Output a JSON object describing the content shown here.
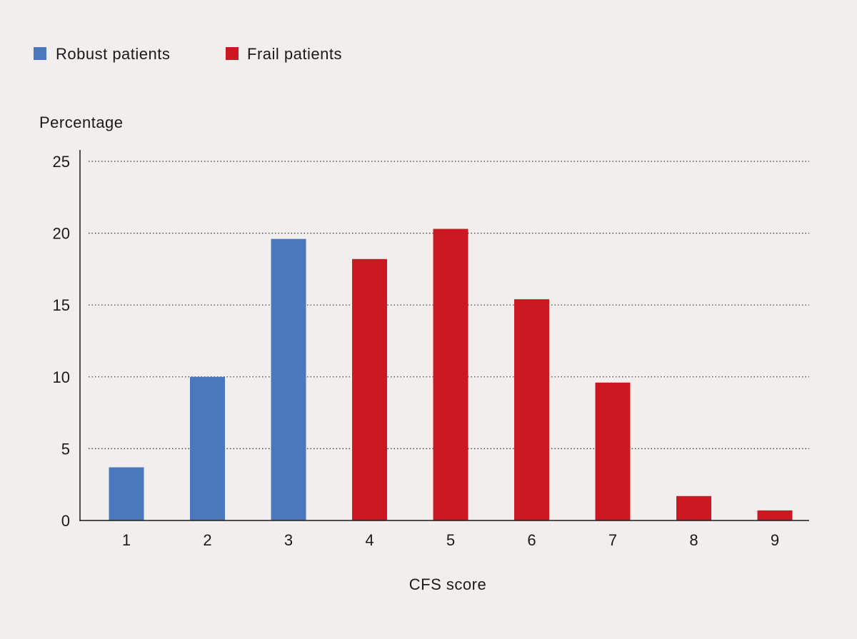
{
  "chart_data": {
    "type": "bar",
    "xlabel": "CFS score",
    "ylabel": "Percentage",
    "categories": [
      "1",
      "2",
      "3",
      "4",
      "5",
      "6",
      "7",
      "8",
      "9"
    ],
    "values": [
      3.7,
      10.0,
      19.6,
      18.2,
      20.3,
      15.4,
      9.6,
      1.7,
      0.7
    ],
    "groups": [
      "robust",
      "robust",
      "robust",
      "frail",
      "frail",
      "frail",
      "frail",
      "frail",
      "frail"
    ],
    "ylim": [
      0,
      25
    ],
    "yticks": [
      0,
      5,
      10,
      15,
      20,
      25
    ],
    "grid": "horizontal dotted",
    "legend_position": "top-left",
    "legend": [
      {
        "key": "robust",
        "label": "Robust patients",
        "color": "#4a78bd"
      },
      {
        "key": "frail",
        "label": "Frail patients",
        "color": "#cc1921"
      }
    ]
  }
}
